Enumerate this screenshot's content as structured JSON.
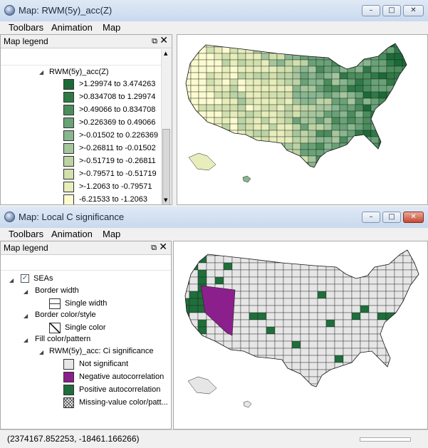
{
  "window1": {
    "title": "Map: RWM(5y)_acc(Z)",
    "menu": [
      "Toolbars",
      "Animation",
      "Map"
    ],
    "legend": {
      "title": "Map legend",
      "layer": "RWM(5y)_acc(Z)",
      "classes": [
        {
          "label": ">1.29974 to 3.474263",
          "color": "#1b6a38"
        },
        {
          "label": ">0.834708 to 1.29974",
          "color": "#2f7a47"
        },
        {
          "label": ">0.49066 to 0.834708",
          "color": "#4b8d5c"
        },
        {
          "label": ">0.226369 to 0.49066",
          "color": "#6aa277"
        },
        {
          "label": ">-0.01502 to 0.226369",
          "color": "#88b68f"
        },
        {
          "label": ">-0.26811 to -0.01502",
          "color": "#a5c69d"
        },
        {
          "label": ">-0.51719 to -0.26811",
          "color": "#bcd4a4"
        },
        {
          "label": ">-0.79571 to -0.51719",
          "color": "#d2e0ad"
        },
        {
          "label": ">-1.2063 to -0.79571",
          "color": "#e7edbb"
        },
        {
          "label": "-6.21533 to -1.2063",
          "color": "#fbfbd0"
        }
      ]
    }
  },
  "window2": {
    "title": "Map: Local C significance",
    "menu": [
      "Toolbars",
      "Animation",
      "Map"
    ],
    "legend": {
      "title": "Map legend",
      "layer": "SEAs",
      "border_width_heading": "Border width",
      "border_width_value": "Single width",
      "border_color_heading": "Border color/style",
      "border_color_value": "Single color",
      "fill_heading": "Fill color/pattern",
      "fill_var": "RWM(5y)_acc: Ci significance",
      "fill_classes": [
        {
          "label": "Not significant",
          "color": "#e6e6e6"
        },
        {
          "label": "Negative autocorrelation",
          "color": "#8b1f8c"
        },
        {
          "label": "Positive autocorrelation",
          "color": "#1f6e3b"
        },
        {
          "label": "Missing-value color/patt...",
          "color": "hatch"
        }
      ]
    }
  },
  "status": {
    "coords": "(2374167.852253, -18461.166266)"
  }
}
